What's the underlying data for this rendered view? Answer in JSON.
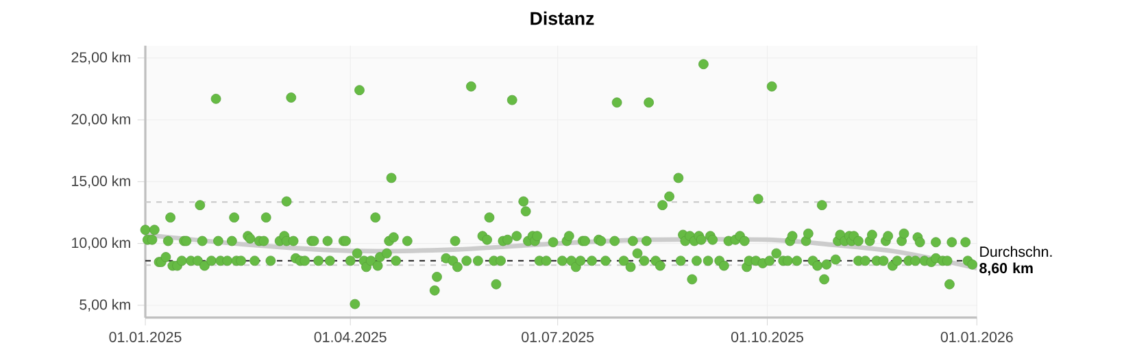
{
  "chart_data": {
    "type": "scatter",
    "title": "Distanz",
    "xlim": [
      "2025-01-01",
      "2026-01-01"
    ],
    "xticks": [
      {
        "value": "2025-01-01",
        "label": "01.01.2025"
      },
      {
        "value": "2025-04-01",
        "label": "01.04.2025"
      },
      {
        "value": "2025-07-01",
        "label": "01.07.2025"
      },
      {
        "value": "2025-10-01",
        "label": "01.10.2025"
      },
      {
        "value": "2026-01-01",
        "label": "01.01.2026"
      }
    ],
    "ylim": [
      4,
      26
    ],
    "yticks": [
      {
        "value": 5,
        "label": "5,00 km"
      },
      {
        "value": 10,
        "label": "10,00 km"
      },
      {
        "value": 15,
        "label": "15,00 km"
      },
      {
        "value": 20,
        "label": "20,00 km"
      },
      {
        "value": 25,
        "label": "25,00 km"
      }
    ],
    "grid": true,
    "marker": "circle",
    "series": [
      {
        "type": "line",
        "marker": "none",
        "color": "#cccccc",
        "x": [
          "2025-01-01",
          "2025-02-15",
          "2025-04-01",
          "2025-05-16",
          "2025-07-01",
          "2025-08-09",
          "2025-10-01",
          "2025-10-29",
          "2025-11-28",
          "2026-01-01"
        ],
        "values": [
          10.7,
          9.9,
          9.4,
          9.5,
          10.0,
          10.3,
          10.3,
          9.9,
          9.3,
          8.0
        ]
      },
      {
        "color": "#66bb44",
        "x": [
          "2025-01-01",
          "2025-01-02",
          "2025-01-04",
          "2025-01-05",
          "2025-01-07",
          "2025-01-08",
          "2025-01-10",
          "2025-01-11",
          "2025-01-12",
          "2025-01-13",
          "2025-01-15",
          "2025-01-17",
          "2025-01-18",
          "2025-01-19",
          "2025-01-21",
          "2025-01-24",
          "2025-01-25",
          "2025-01-26",
          "2025-01-27",
          "2025-01-30",
          "2025-02-01",
          "2025-02-02",
          "2025-02-03",
          "2025-02-06",
          "2025-02-08",
          "2025-02-09",
          "2025-02-10",
          "2025-02-12",
          "2025-02-15",
          "2025-02-16",
          "2025-02-18",
          "2025-02-20",
          "2025-02-22",
          "2025-02-23",
          "2025-02-25",
          "2025-03-01",
          "2025-03-03",
          "2025-03-04",
          "2025-03-04",
          "2025-03-06",
          "2025-03-07",
          "2025-03-08",
          "2025-03-10",
          "2025-03-12",
          "2025-03-15",
          "2025-03-16",
          "2025-03-18",
          "2025-03-22",
          "2025-03-23",
          "2025-03-29",
          "2025-03-30",
          "2025-04-01",
          "2025-04-03",
          "2025-04-04",
          "2025-04-05",
          "2025-04-07",
          "2025-04-08",
          "2025-04-10",
          "2025-04-12",
          "2025-04-13",
          "2025-04-14",
          "2025-04-17",
          "2025-04-18",
          "2025-04-19",
          "2025-04-20",
          "2025-04-21",
          "2025-04-26",
          "2025-05-08",
          "2025-05-09",
          "2025-05-13",
          "2025-05-16",
          "2025-05-17",
          "2025-05-18",
          "2025-05-22",
          "2025-05-24",
          "2025-05-27",
          "2025-05-29",
          "2025-05-31",
          "2025-06-01",
          "2025-06-03",
          "2025-06-04",
          "2025-06-06",
          "2025-06-07",
          "2025-06-09",
          "2025-06-11",
          "2025-06-13",
          "2025-06-16",
          "2025-06-17",
          "2025-06-18",
          "2025-06-20",
          "2025-06-21",
          "2025-06-22",
          "2025-06-23",
          "2025-06-26",
          "2025-06-29",
          "2025-07-03",
          "2025-07-05",
          "2025-07-06",
          "2025-07-07",
          "2025-07-09",
          "2025-07-11",
          "2025-07-12",
          "2025-07-13",
          "2025-07-16",
          "2025-07-19",
          "2025-07-20",
          "2025-07-22",
          "2025-07-26",
          "2025-07-27",
          "2025-07-30",
          "2025-08-02",
          "2025-08-03",
          "2025-08-05",
          "2025-08-08",
          "2025-08-09",
          "2025-08-10",
          "2025-08-13",
          "2025-08-15",
          "2025-08-16",
          "2025-08-19",
          "2025-08-23",
          "2025-08-24",
          "2025-08-25",
          "2025-08-26",
          "2025-08-28",
          "2025-08-29",
          "2025-08-30",
          "2025-08-31",
          "2025-09-01",
          "2025-09-02",
          "2025-09-03",
          "2025-09-05",
          "2025-09-06",
          "2025-09-07",
          "2025-09-10",
          "2025-09-12",
          "2025-09-14",
          "2025-09-17",
          "2025-09-19",
          "2025-09-21",
          "2025-09-22",
          "2025-09-23",
          "2025-09-26",
          "2025-09-27",
          "2025-09-29",
          "2025-10-02",
          "2025-10-03",
          "2025-10-05",
          "2025-10-08",
          "2025-10-10",
          "2025-10-11",
          "2025-10-12",
          "2025-10-14",
          "2025-10-18",
          "2025-10-19",
          "2025-10-21",
          "2025-10-23",
          "2025-10-25",
          "2025-10-26",
          "2025-10-27",
          "2025-10-31",
          "2025-11-01",
          "2025-11-02",
          "2025-11-04",
          "2025-11-06",
          "2025-11-07",
          "2025-11-08",
          "2025-11-10",
          "2025-11-10",
          "2025-11-13",
          "2025-11-15",
          "2025-11-16",
          "2025-11-18",
          "2025-11-21",
          "2025-11-22",
          "2025-11-23",
          "2025-11-25",
          "2025-11-27",
          "2025-11-29",
          "2025-11-30",
          "2025-12-02",
          "2025-12-05",
          "2025-12-06",
          "2025-12-07",
          "2025-12-09",
          "2025-12-12",
          "2025-12-14",
          "2025-12-14",
          "2025-12-17",
          "2025-12-19",
          "2025-12-20",
          "2025-12-21",
          "2025-12-27",
          "2025-12-28",
          "2025-12-30"
        ],
        "values": [
          11.1,
          10.3,
          10.3,
          11.1,
          8.5,
          8.5,
          8.9,
          10.2,
          12.1,
          8.2,
          8.2,
          8.6,
          10.2,
          10.2,
          8.6,
          8.6,
          13.1,
          10.2,
          8.2,
          8.6,
          21.7,
          10.2,
          8.6,
          8.6,
          10.2,
          12.1,
          8.6,
          8.6,
          10.6,
          10.4,
          8.6,
          10.2,
          10.2,
          12.1,
          8.6,
          10.2,
          10.6,
          13.4,
          10.2,
          21.8,
          10.2,
          8.8,
          8.6,
          8.6,
          10.2,
          10.2,
          8.6,
          10.2,
          8.6,
          10.2,
          10.2,
          8.6,
          5.1,
          9.2,
          22.4,
          8.6,
          8.1,
          8.6,
          12.1,
          8.2,
          8.9,
          9.2,
          10.2,
          15.3,
          10.5,
          8.6,
          10.2,
          6.2,
          7.3,
          8.8,
          8.6,
          10.2,
          8.1,
          8.6,
          22.7,
          8.6,
          10.6,
          10.3,
          12.1,
          8.6,
          6.7,
          8.6,
          10.2,
          10.3,
          21.6,
          10.6,
          13.4,
          12.6,
          10.2,
          10.6,
          10.2,
          10.6,
          8.6,
          8.6,
          10.1,
          8.6,
          10.2,
          10.6,
          8.6,
          8.1,
          8.6,
          10.2,
          10.2,
          8.6,
          10.3,
          10.2,
          8.6,
          10.2,
          21.4,
          8.6,
          8.1,
          10.2,
          9.2,
          8.6,
          10.2,
          21.4,
          8.6,
          8.2,
          13.1,
          13.8,
          15.3,
          8.6,
          10.7,
          10.2,
          10.6,
          7.1,
          10.2,
          8.6,
          10.6,
          10.3,
          24.5,
          8.6,
          10.6,
          10.3,
          8.6,
          8.2,
          10.2,
          10.3,
          10.6,
          10.2,
          8.1,
          8.6,
          8.6,
          13.6,
          8.4,
          8.6,
          22.7,
          9.2,
          8.6,
          8.6,
          10.2,
          10.6,
          8.6,
          10.2,
          10.8,
          8.6,
          8.2,
          13.1,
          7.1,
          8.3,
          8.7,
          10.2,
          10.7,
          10.2,
          10.6,
          10.2,
          10.6,
          10.2,
          8.6,
          8.6,
          10.2,
          10.7,
          8.6,
          8.6,
          10.2,
          10.6,
          8.2,
          8.6,
          10.2,
          10.8,
          8.6,
          8.6,
          10.5,
          10.1,
          8.6,
          8.5,
          10.1,
          8.8,
          8.6,
          8.6,
          6.7,
          10.1,
          10.1,
          8.6,
          8.3
        ]
      }
    ],
    "ref_lines": [
      {
        "axis": "y",
        "value": 13.35,
        "color": "#cccccc",
        "line_style": "dashed"
      },
      {
        "axis": "y",
        "value": 8.25,
        "color": "#cccccc",
        "line_style": "dashed"
      },
      {
        "axis": "y",
        "value": 8.6,
        "color": "#333333",
        "line_style": "dashed",
        "label": "Durchschn. **8,60 km**"
      }
    ]
  }
}
